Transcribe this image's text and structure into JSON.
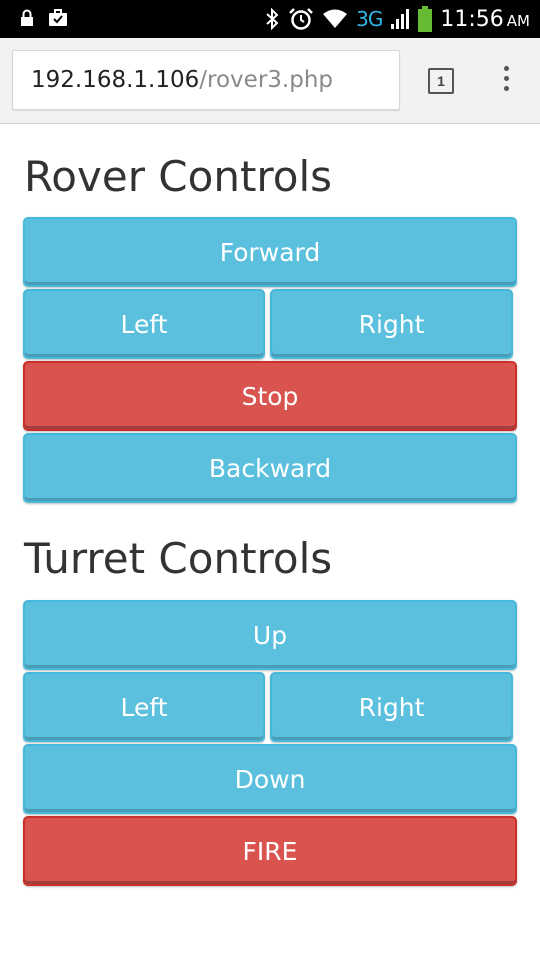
{
  "status_bar": {
    "network": "3G",
    "time": "11:56",
    "ampm": "AM",
    "icons": [
      "lock-icon",
      "briefcase-icon",
      "bluetooth-icon",
      "alarm-icon",
      "wifi-icon",
      "signal-icon",
      "battery-icon"
    ]
  },
  "browser": {
    "url_host": "192.168.1.106",
    "url_path": "/rover3.php",
    "tab_count": "1"
  },
  "rover": {
    "title": "Rover Controls",
    "forward": "Forward",
    "left": "Left",
    "right": "Right",
    "stop": "Stop",
    "backward": "Backward"
  },
  "turret": {
    "title": "Turret Controls",
    "up": "Up",
    "left": "Left",
    "right": "Right",
    "down": "Down",
    "fire": "FIRE"
  },
  "colors": {
    "info": "#5bc0de",
    "danger": "#d9534f",
    "network_accent": "#33b5e5",
    "battery": "#66bb33"
  }
}
